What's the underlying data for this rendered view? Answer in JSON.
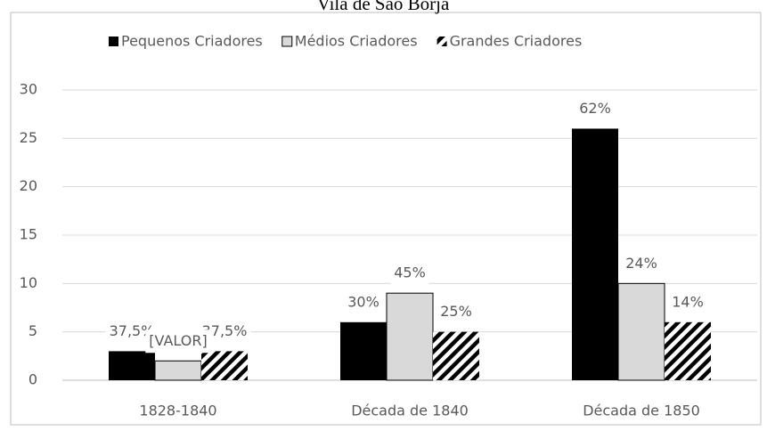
{
  "chart_data": {
    "type": "bar",
    "title": "Vila de São Borja",
    "categories": [
      "1828-1840",
      "Década de 1840",
      "Década de 1850"
    ],
    "series": [
      {
        "name": "Pequenos Criadores",
        "color": "#000000",
        "values": [
          3,
          6,
          26
        ],
        "value_labels": [
          "37,5%",
          "30%",
          "62%"
        ]
      },
      {
        "name": "Médios Criadores",
        "color": "#d9d9d9",
        "values": [
          2,
          9,
          10
        ],
        "value_labels": [
          "[VALOR]",
          "45%",
          "24%"
        ]
      },
      {
        "name": "Grandes Criadores",
        "color": "#000000",
        "pattern": "hatch",
        "values": [
          3,
          5,
          6
        ],
        "value_labels": [
          "37,5%",
          "25%",
          "14%"
        ]
      }
    ],
    "ylim": [
      0,
      30
    ],
    "yticks": [
      0,
      5,
      10,
      15,
      20,
      25,
      30
    ],
    "grid": true,
    "legend": "top"
  }
}
